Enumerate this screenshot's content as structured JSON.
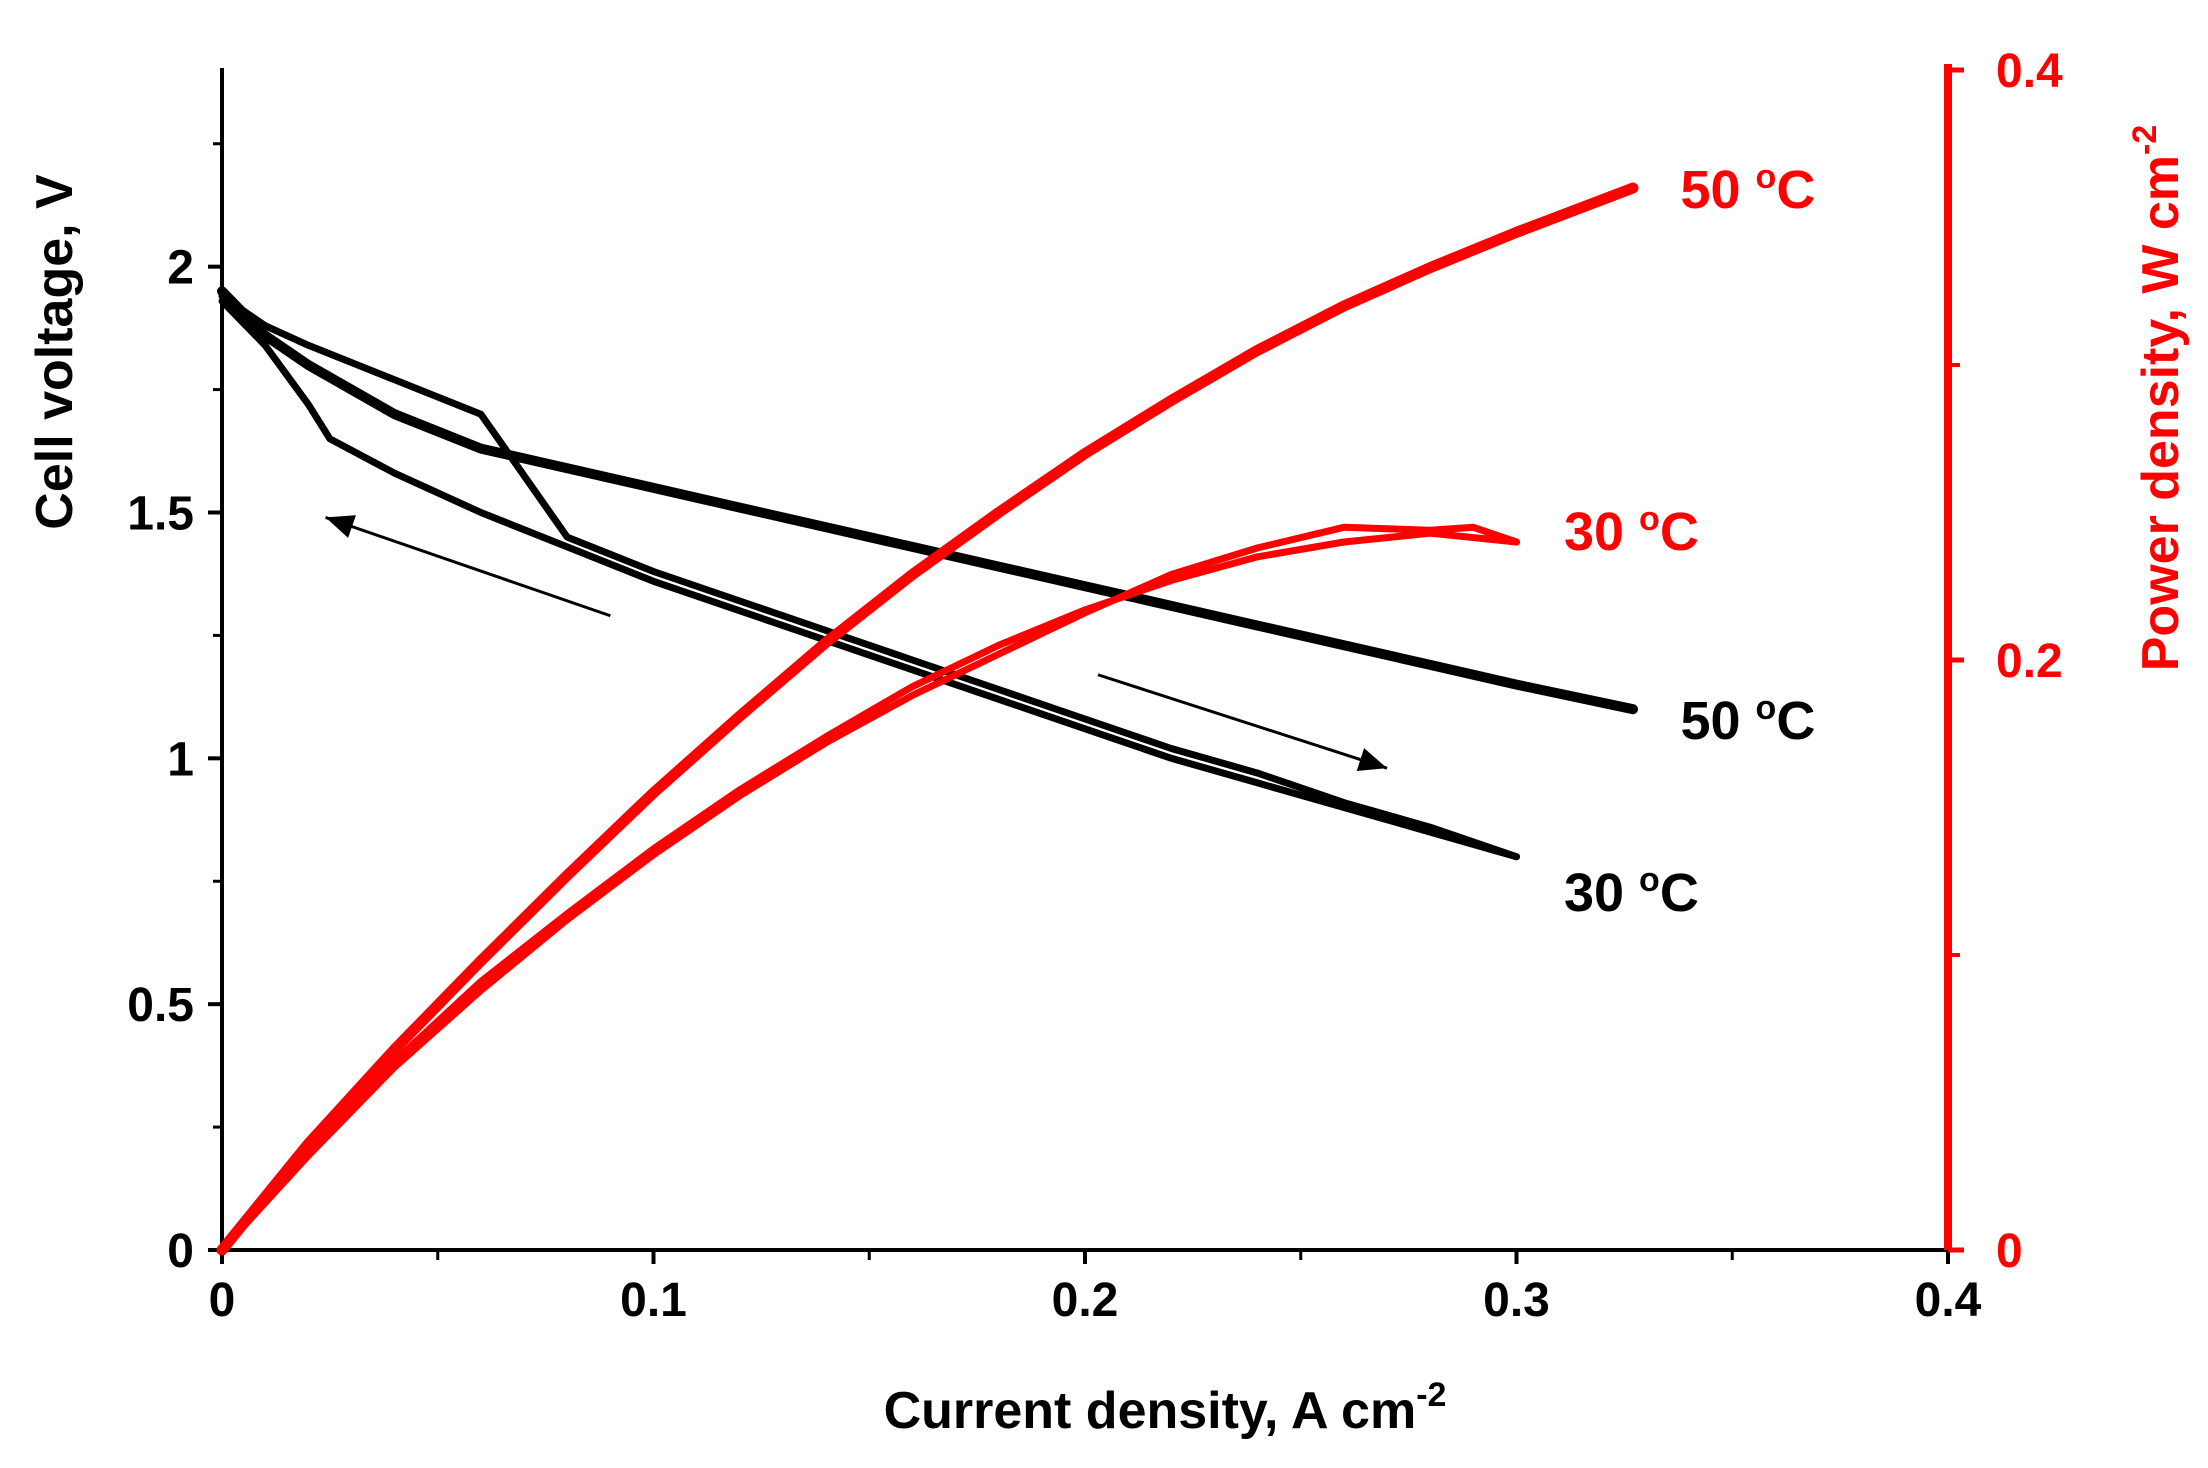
{
  "chart_data": {
    "type": "line",
    "xlabel": "Current density, A cm",
    "xlabel_sup": "-2",
    "ylabel_left": "Cell voltage, V",
    "ylabel_right": "Power density, W cm",
    "ylabel_right_sup": "-2",
    "xlim": [
      0,
      0.4
    ],
    "ylim_left": [
      0,
      2.4
    ],
    "ylim_right": [
      0,
      0.4
    ],
    "x_ticks": [
      "0",
      "0.1",
      "0.2",
      "0.3",
      "0.4"
    ],
    "x_tick_values": [
      0,
      0.1,
      0.2,
      0.3,
      0.4
    ],
    "y_left_ticks": [
      "0",
      "0.5",
      "1",
      "1.5",
      "2"
    ],
    "y_left_tick_values": [
      0,
      0.5,
      1,
      1.5,
      2
    ],
    "y_right_ticks": [
      "0",
      "0.2",
      "0.4"
    ],
    "y_right_tick_values": [
      0,
      0.2,
      0.4
    ],
    "colors": {
      "voltage": "#000000",
      "power": "#ff0000"
    },
    "series": [
      {
        "name": "Cell voltage 50 oC",
        "axis": "left",
        "color": "#000000",
        "x": [
          0,
          0.01,
          0.02,
          0.04,
          0.06,
          0.08,
          0.1,
          0.12,
          0.14,
          0.16,
          0.18,
          0.2,
          0.22,
          0.24,
          0.26,
          0.28,
          0.3,
          0.327
        ],
        "y": [
          1.95,
          1.86,
          1.8,
          1.7,
          1.63,
          1.59,
          1.55,
          1.51,
          1.47,
          1.43,
          1.39,
          1.35,
          1.31,
          1.27,
          1.23,
          1.19,
          1.15,
          1.1
        ]
      },
      {
        "name": "Cell voltage 30 oC (forward)",
        "axis": "left",
        "color": "#000000",
        "x": [
          0,
          0.01,
          0.02,
          0.04,
          0.06,
          0.08,
          0.1,
          0.12,
          0.14,
          0.16,
          0.18,
          0.2,
          0.22,
          0.24,
          0.26,
          0.28,
          0.3
        ],
        "y": [
          1.94,
          1.88,
          1.84,
          1.77,
          1.7,
          1.45,
          1.38,
          1.32,
          1.26,
          1.2,
          1.14,
          1.08,
          1.02,
          0.97,
          0.91,
          0.86,
          0.8
        ]
      },
      {
        "name": "Cell voltage 30 oC (reverse)",
        "axis": "left",
        "color": "#000000",
        "x": [
          0.3,
          0.28,
          0.26,
          0.24,
          0.22,
          0.2,
          0.18,
          0.16,
          0.14,
          0.12,
          0.1,
          0.08,
          0.06,
          0.04,
          0.025,
          0.02,
          0.01,
          0
        ],
        "y": [
          0.8,
          0.85,
          0.9,
          0.95,
          1.0,
          1.06,
          1.12,
          1.18,
          1.24,
          1.3,
          1.36,
          1.43,
          1.5,
          1.58,
          1.65,
          1.72,
          1.84,
          1.93
        ]
      },
      {
        "name": "Power density 50 oC",
        "axis": "right",
        "color": "#ff0000",
        "x": [
          0,
          0.02,
          0.04,
          0.06,
          0.08,
          0.1,
          0.12,
          0.14,
          0.16,
          0.18,
          0.2,
          0.22,
          0.24,
          0.26,
          0.28,
          0.3,
          0.327
        ],
        "y": [
          0,
          0.036,
          0.068,
          0.098,
          0.127,
          0.155,
          0.181,
          0.206,
          0.229,
          0.25,
          0.27,
          0.288,
          0.305,
          0.32,
          0.333,
          0.345,
          0.36
        ]
      },
      {
        "name": "Power density 30 oC (forward)",
        "axis": "right",
        "color": "#ff0000",
        "x": [
          0,
          0.02,
          0.04,
          0.06,
          0.08,
          0.1,
          0.12,
          0.14,
          0.16,
          0.18,
          0.2,
          0.22,
          0.24,
          0.26,
          0.28,
          0.3
        ],
        "y": [
          0,
          0.034,
          0.064,
          0.091,
          0.114,
          0.136,
          0.156,
          0.174,
          0.191,
          0.205,
          0.217,
          0.227,
          0.235,
          0.24,
          0.243,
          0.24
        ]
      },
      {
        "name": "Power density 30 oC (reverse)",
        "axis": "right",
        "color": "#ff0000",
        "x": [
          0.3,
          0.29,
          0.28,
          0.26,
          0.24,
          0.22,
          0.2,
          0.18,
          0.16,
          0.14,
          0.12,
          0.1,
          0.08,
          0.06,
          0.04,
          0.02,
          0
        ],
        "y": [
          0.24,
          0.245,
          0.244,
          0.245,
          0.238,
          0.229,
          0.216,
          0.202,
          0.188,
          0.172,
          0.154,
          0.134,
          0.112,
          0.088,
          0.062,
          0.032,
          0
        ]
      }
    ],
    "annotations": [
      {
        "text": "50 oC",
        "color": "#ff0000",
        "x": 0.338,
        "y_right": 0.36
      },
      {
        "text": "30 oC",
        "color": "#ff0000",
        "x": 0.311,
        "y_right": 0.244
      },
      {
        "text": "50 oC",
        "color": "#000000",
        "x": 0.338,
        "y_left": 1.08
      },
      {
        "text": "30 oC",
        "color": "#000000",
        "x": 0.311,
        "y_left": 0.73
      }
    ],
    "arrows": [
      {
        "from": [
          0.09,
          1.29
        ],
        "to": [
          0.024,
          1.49
        ],
        "axis": "left"
      },
      {
        "from": [
          0.203,
          1.17
        ],
        "to": [
          0.27,
          0.98
        ],
        "axis": "left"
      }
    ]
  }
}
